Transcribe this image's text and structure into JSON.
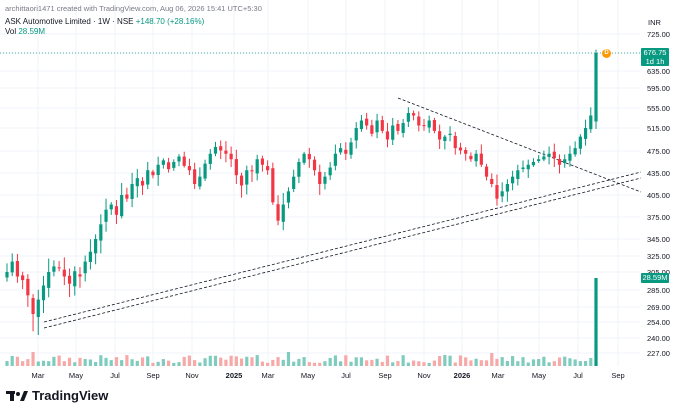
{
  "header": {
    "attribution": "archittaori1471 created with TradingView.com, Aug 06, 2026 15:41 UTC+5:30",
    "symbol_line": "ASK Automotive Limited · 1W · NSE",
    "change": "+148.70 (+28.16%)",
    "volume_label": "Vol",
    "volume_value": "28.59M"
  },
  "currency": "INR",
  "price_badge": {
    "price": "676.75",
    "countdown": "1d 1h"
  },
  "volume_badge": "28.59M",
  "dividend_marker": "D",
  "y_ticks": [
    "725.00",
    "676.75",
    "635.00",
    "595.00",
    "555.00",
    "515.00",
    "475.00",
    "435.00",
    "405.00",
    "375.00",
    "345.00",
    "325.00",
    "305.00",
    "285.00",
    "269.00",
    "254.00",
    "240.00",
    "227.00"
  ],
  "x_ticks": [
    {
      "label": "Mar",
      "bold": false
    },
    {
      "label": "May",
      "bold": false
    },
    {
      "label": "Jul",
      "bold": false
    },
    {
      "label": "Sep",
      "bold": false
    },
    {
      "label": "Nov",
      "bold": false
    },
    {
      "label": "2025",
      "bold": true
    },
    {
      "label": "Mar",
      "bold": false
    },
    {
      "label": "May",
      "bold": false
    },
    {
      "label": "Jul",
      "bold": false
    },
    {
      "label": "Sep",
      "bold": false
    },
    {
      "label": "Nov",
      "bold": false
    },
    {
      "label": "2026",
      "bold": true
    },
    {
      "label": "Mar",
      "bold": false
    },
    {
      "label": "May",
      "bold": false
    },
    {
      "label": "Jul",
      "bold": false
    },
    {
      "label": "Sep",
      "bold": false
    }
  ],
  "logo_text": "TradingView",
  "colors": {
    "up": "#089981",
    "down": "#f23645",
    "trendline": "#131722",
    "last_price_line": "#089981"
  },
  "chart_data": {
    "type": "candlestick",
    "title": "ASK Automotive Limited · 1W · NSE",
    "ylabel": "INR",
    "ylim": [
      227,
      725
    ],
    "weekly_closes": [
      305,
      318,
      300,
      296,
      280,
      262,
      276,
      290,
      305,
      312,
      310,
      300,
      292,
      306,
      300,
      318,
      330,
      345,
      365,
      385,
      392,
      378,
      405,
      400,
      420,
      428,
      418,
      440,
      432,
      450,
      458,
      442,
      455,
      465,
      448,
      440,
      420,
      430,
      452,
      470,
      482,
      476,
      470,
      460,
      432,
      418,
      440,
      438,
      460,
      450,
      440,
      395,
      370,
      392,
      410,
      430,
      455,
      470,
      460,
      440,
      420,
      430,
      445,
      470,
      480,
      470,
      490,
      515,
      530,
      520,
      505,
      530,
      510,
      495,
      520,
      510,
      525,
      545,
      540,
      520,
      520,
      530,
      510,
      495,
      500,
      505,
      480,
      476,
      470,
      460,
      470,
      450,
      430,
      420,
      400,
      410,
      420,
      430,
      440,
      445,
      450,
      455,
      460,
      465,
      470,
      462,
      450,
      460,
      470,
      480,
      500,
      515,
      540,
      676.75
    ]
  }
}
